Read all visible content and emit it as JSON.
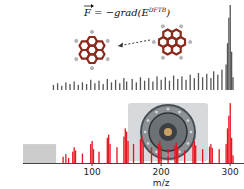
{
  "chart_data": [
    {
      "type": "bar",
      "color": "#555555",
      "tick_labels": false,
      "annotation": [
        "F = −grad(E",
        "DFTB",
        ")"
      ],
      "xlim": [
        0,
        320
      ],
      "ylim": [
        0,
        100
      ],
      "x": [
        44,
        50,
        56,
        62,
        68,
        74,
        80,
        86,
        92,
        98,
        104,
        110,
        116,
        122,
        128,
        134,
        140,
        146,
        150,
        158,
        164,
        170,
        176,
        182,
        188,
        194,
        200,
        206,
        212,
        218,
        224,
        230,
        236,
        242,
        248,
        254,
        260,
        266,
        272,
        276,
        282,
        288,
        294,
        296,
        298,
        300,
        302,
        304
      ],
      "values": [
        6,
        8,
        5,
        9,
        7,
        10,
        6,
        9,
        7,
        12,
        8,
        11,
        7,
        13,
        9,
        12,
        8,
        14,
        10,
        13,
        9,
        15,
        11,
        14,
        10,
        16,
        12,
        15,
        11,
        17,
        13,
        16,
        12,
        18,
        14,
        20,
        15,
        19,
        14,
        22,
        18,
        24,
        30,
        55,
        85,
        100,
        45,
        15
      ]
    },
    {
      "type": "bar",
      "color": "#e8141e",
      "tick_labels": "x",
      "xlabel": "m/z",
      "xlim": [
        0,
        320
      ],
      "ylim": [
        0,
        100
      ],
      "xticks": [
        100,
        200,
        300
      ],
      "shaded": {
        "xrange": [
          0,
          48
        ],
        "yrange": [
          0,
          30
        ]
      },
      "x": [
        58,
        62,
        66,
        72,
        74,
        76,
        86,
        98,
        100,
        102,
        110,
        122,
        124,
        126,
        136,
        146,
        148,
        150,
        152,
        160,
        170,
        172,
        174,
        186,
        196,
        198,
        200,
        210,
        220,
        222,
        224,
        234,
        246,
        248,
        250,
        260,
        270,
        272,
        274,
        284,
        294,
        296,
        298,
        300,
        302,
        304
      ],
      "values": [
        10,
        14,
        8,
        18,
        25,
        20,
        15,
        30,
        35,
        22,
        18,
        40,
        45,
        30,
        25,
        42,
        55,
        50,
        35,
        30,
        38,
        42,
        30,
        25,
        30,
        35,
        28,
        22,
        28,
        32,
        25,
        20,
        30,
        35,
        28,
        22,
        26,
        30,
        24,
        22,
        30,
        55,
        75,
        95,
        40,
        12
      ]
    }
  ]
}
